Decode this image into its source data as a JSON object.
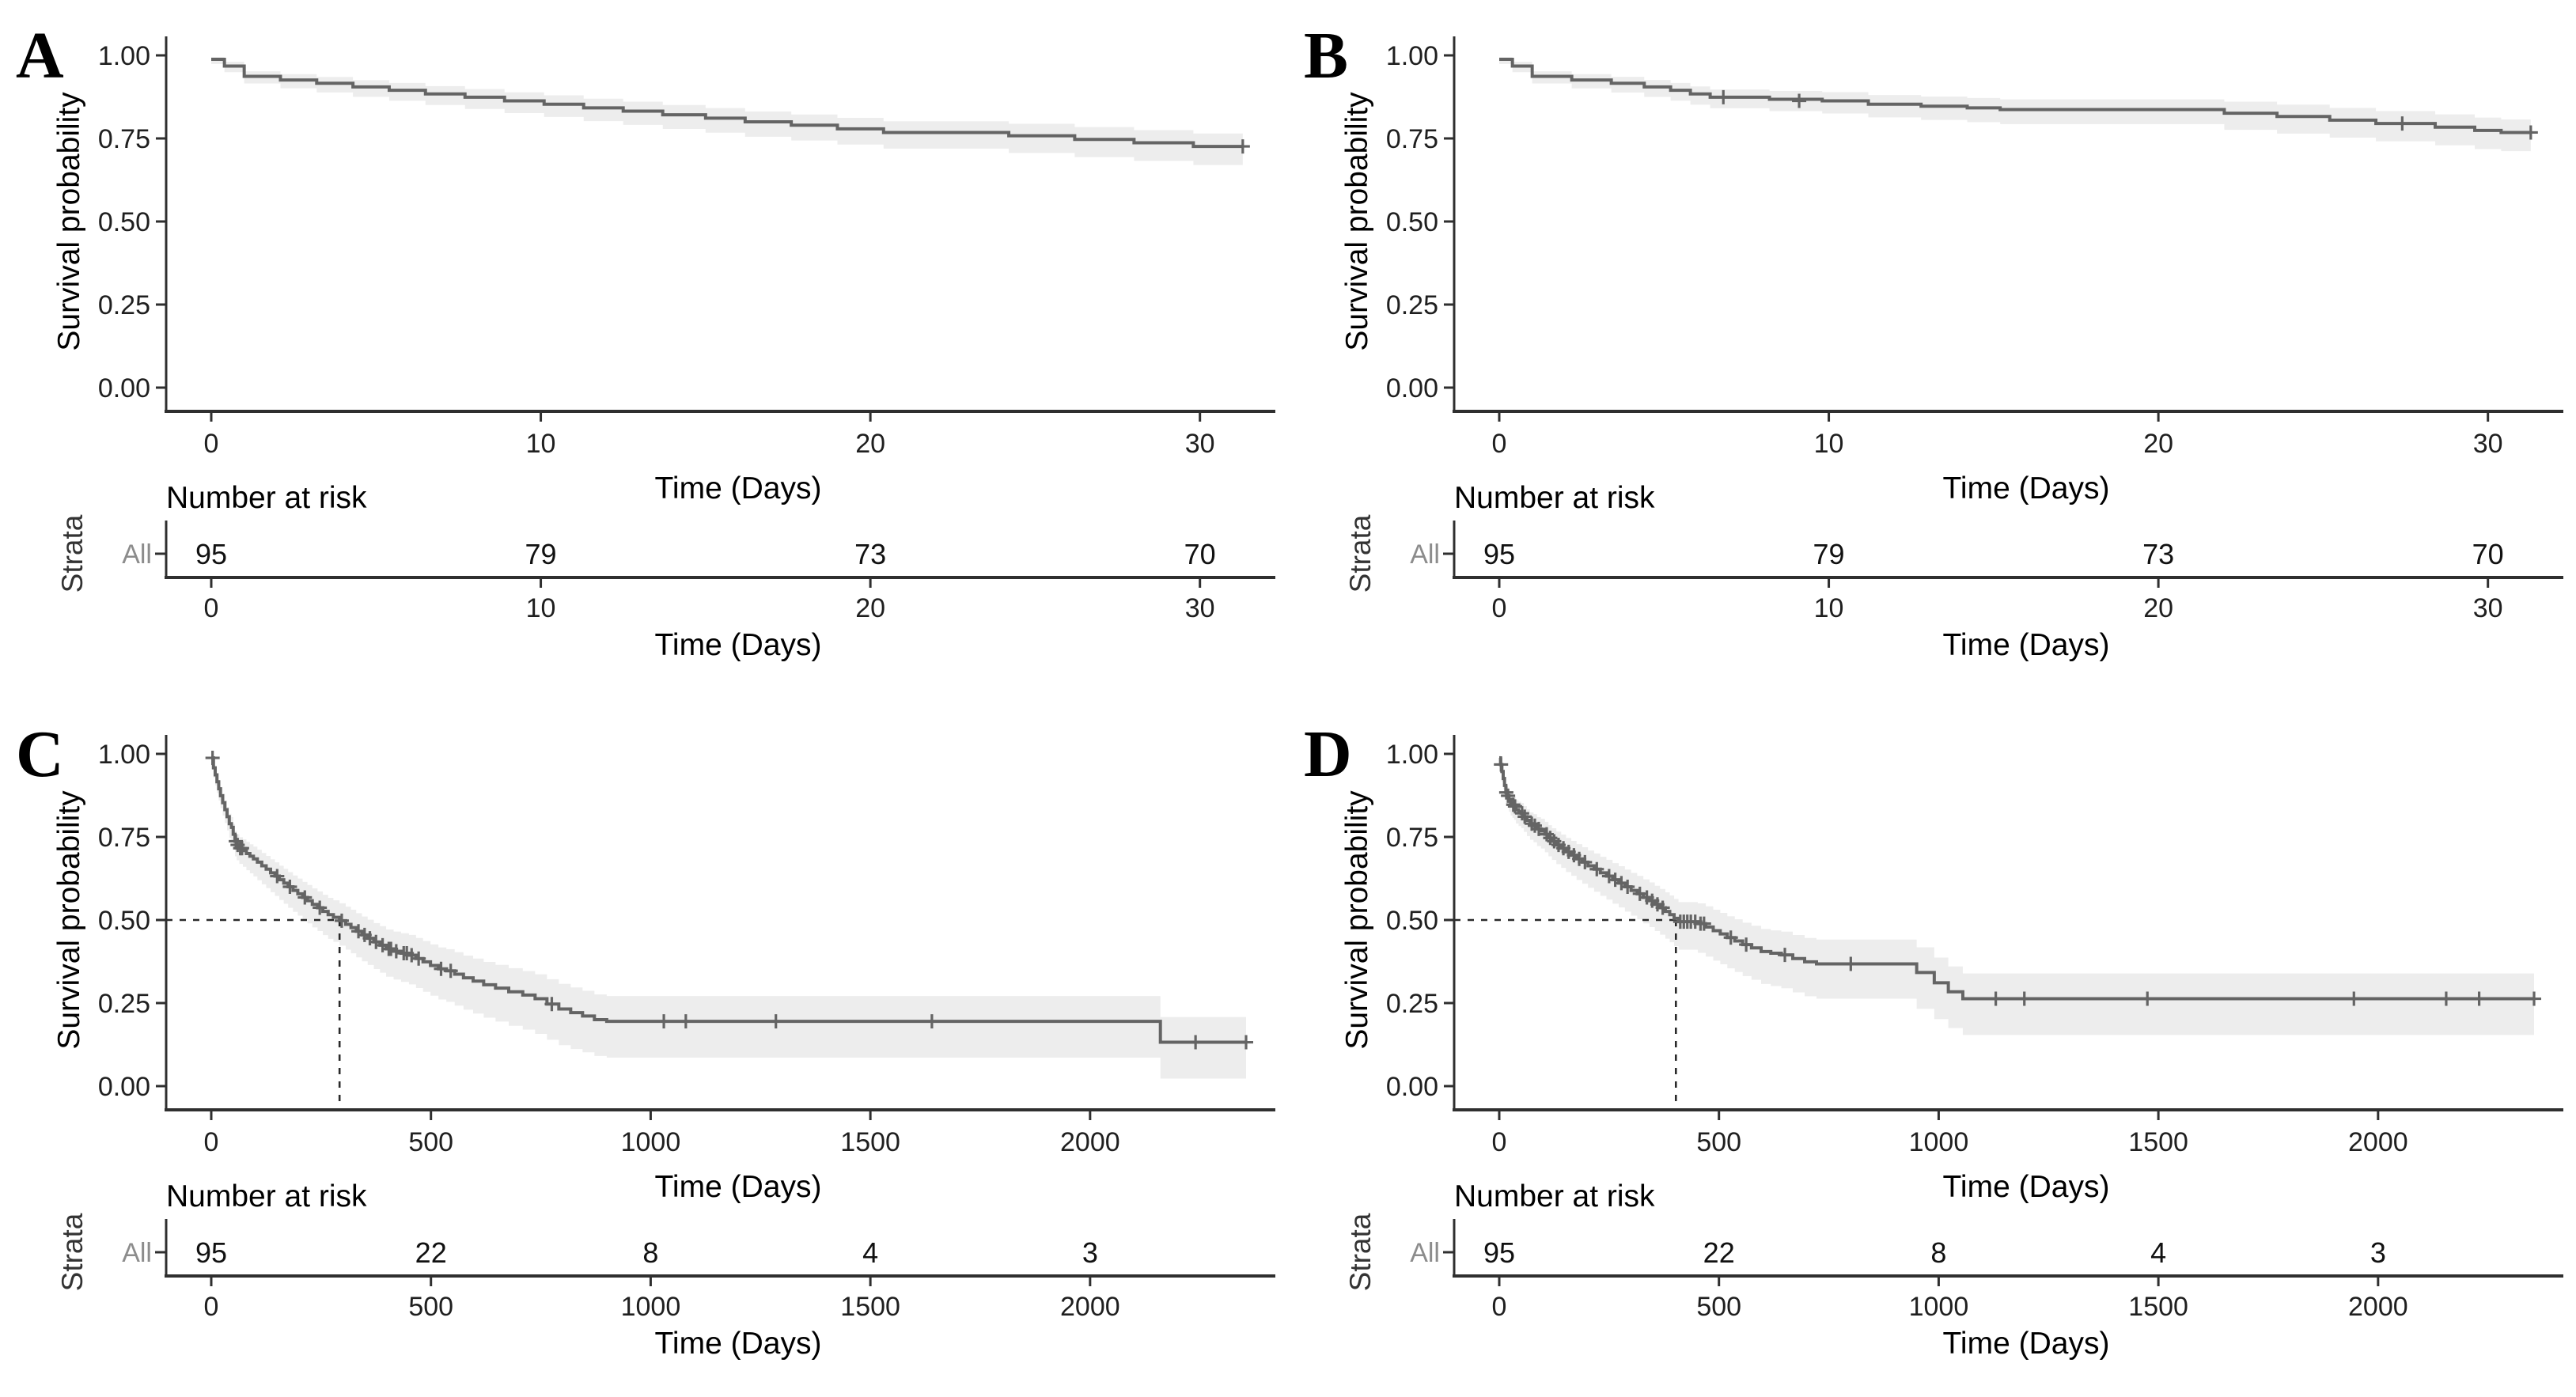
{
  "figure": {
    "background": "#ffffff",
    "ylabel": "Survival probability",
    "xlabel": "Time (Days)",
    "risk_title": "Number at risk",
    "strata_axis_label": "Strata",
    "strata_name": "All",
    "y_tick_labels": [
      "0.00",
      "0.25",
      "0.50",
      "0.75",
      "1.00"
    ],
    "y_tick_values": [
      0,
      0.25,
      0.5,
      0.75,
      1
    ],
    "colors": {
      "curve": "#646464",
      "band": "#ededed",
      "axis": "#2f2f2f",
      "tick_text": "#1f1f1f",
      "title_text": "#000000",
      "strata": "#333333",
      "strata_item": "#8c8c8c",
      "dashed": "#2a2a2a"
    }
  },
  "chart_data": [
    {
      "label": "A",
      "type": "line",
      "subtype": "kaplan-meier-step",
      "xlabel": "Time (Days)",
      "ylabel": "Survival probability",
      "xlim": [
        0,
        32
      ],
      "ylim": [
        0,
        1
      ],
      "x_ticks": [
        0,
        10,
        20,
        30
      ],
      "x_max": 32,
      "band": {
        "h0": 0.012,
        "h1": 0.05,
        "tref": 32
      },
      "median": null,
      "steps": [
        [
          0,
          0.988
        ],
        [
          0.4,
          0.968
        ],
        [
          1.0,
          0.937
        ],
        [
          2.1,
          0.926
        ],
        [
          3.2,
          0.916
        ],
        [
          4.3,
          0.905
        ],
        [
          5.4,
          0.895
        ],
        [
          6.5,
          0.884
        ],
        [
          7.7,
          0.874
        ],
        [
          8.9,
          0.863
        ],
        [
          10.1,
          0.853
        ],
        [
          11.3,
          0.842
        ],
        [
          12.5,
          0.832
        ],
        [
          13.7,
          0.821
        ],
        [
          15.0,
          0.811
        ],
        [
          16.2,
          0.8
        ],
        [
          17.6,
          0.79
        ],
        [
          19.0,
          0.779
        ],
        [
          20.4,
          0.768
        ],
        [
          24.2,
          0.758
        ],
        [
          26.2,
          0.747
        ],
        [
          28.0,
          0.737
        ],
        [
          29.8,
          0.726
        ],
        [
          31.3,
          0.726
        ]
      ],
      "censors": [
        [
          31.3,
          0.726
        ]
      ],
      "risk": {
        "times": [
          0,
          10,
          20,
          30
        ],
        "values": [
          "95",
          "79",
          "73",
          "70"
        ]
      }
    },
    {
      "label": "B",
      "type": "line",
      "subtype": "kaplan-meier-step",
      "xlabel": "Time (Days)",
      "ylabel": "Survival probability",
      "xlim": [
        0,
        32
      ],
      "ylim": [
        0,
        1
      ],
      "x_ticks": [
        0,
        10,
        20,
        30
      ],
      "x_max": 32,
      "band": {
        "h0": 0.012,
        "h1": 0.05,
        "tref": 32
      },
      "median": null,
      "steps": [
        [
          0,
          0.988
        ],
        [
          0.4,
          0.968
        ],
        [
          1.0,
          0.937
        ],
        [
          2.2,
          0.926
        ],
        [
          3.4,
          0.916
        ],
        [
          4.4,
          0.905
        ],
        [
          5.2,
          0.895
        ],
        [
          5.8,
          0.884
        ],
        [
          6.4,
          0.874
        ],
        [
          8.2,
          0.868
        ],
        [
          9.8,
          0.863
        ],
        [
          11.2,
          0.853
        ],
        [
          12.8,
          0.847
        ],
        [
          14.2,
          0.842
        ],
        [
          15.2,
          0.837
        ],
        [
          22.0,
          0.826
        ],
        [
          23.6,
          0.816
        ],
        [
          25.2,
          0.805
        ],
        [
          26.6,
          0.795
        ],
        [
          28.4,
          0.784
        ],
        [
          29.6,
          0.774
        ],
        [
          30.4,
          0.768
        ],
        [
          31.3,
          0.768
        ]
      ],
      "censors": [
        [
          6.8,
          0.874
        ],
        [
          9.1,
          0.863
        ],
        [
          27.4,
          0.795
        ],
        [
          31.3,
          0.768
        ]
      ],
      "risk": {
        "times": [
          0,
          10,
          20,
          30
        ],
        "values": [
          "95",
          "79",
          "73",
          "70"
        ]
      }
    },
    {
      "label": "C",
      "type": "line",
      "subtype": "kaplan-meier-step",
      "xlabel": "Time (Days)",
      "ylabel": "Survival probability",
      "xlim": [
        0,
        2400
      ],
      "ylim": [
        0,
        1
      ],
      "x_ticks": [
        0,
        500,
        1000,
        1500,
        2000
      ],
      "x_max": 2400,
      "band": {
        "h0": 0.02,
        "h1": 0.095,
        "tref": 800
      },
      "median": {
        "time": 292,
        "prob": 0.5
      },
      "steps": [
        [
          0,
          0.988
        ],
        [
          5,
          0.958
        ],
        [
          9,
          0.937
        ],
        [
          13,
          0.916
        ],
        [
          17,
          0.895
        ],
        [
          21,
          0.874
        ],
        [
          26,
          0.853
        ],
        [
          31,
          0.832
        ],
        [
          36,
          0.811
        ],
        [
          41,
          0.79
        ],
        [
          46,
          0.779
        ],
        [
          50,
          0.758
        ],
        [
          54,
          0.737
        ],
        [
          58,
          0.726
        ],
        [
          64,
          0.716
        ],
        [
          72,
          0.709
        ],
        [
          80,
          0.7
        ],
        [
          88,
          0.692
        ],
        [
          96,
          0.684
        ],
        [
          105,
          0.674
        ],
        [
          115,
          0.663
        ],
        [
          125,
          0.653
        ],
        [
          135,
          0.642
        ],
        [
          145,
          0.632
        ],
        [
          155,
          0.621
        ],
        [
          165,
          0.611
        ],
        [
          175,
          0.6
        ],
        [
          186,
          0.589
        ],
        [
          197,
          0.579
        ],
        [
          208,
          0.568
        ],
        [
          219,
          0.558
        ],
        [
          230,
          0.547
        ],
        [
          242,
          0.537
        ],
        [
          254,
          0.526
        ],
        [
          266,
          0.516
        ],
        [
          278,
          0.508
        ],
        [
          292,
          0.498
        ],
        [
          306,
          0.487
        ],
        [
          318,
          0.477
        ],
        [
          330,
          0.466
        ],
        [
          343,
          0.455
        ],
        [
          356,
          0.445
        ],
        [
          370,
          0.434
        ],
        [
          384,
          0.424
        ],
        [
          398,
          0.413
        ],
        [
          415,
          0.406
        ],
        [
          432,
          0.4
        ],
        [
          450,
          0.394
        ],
        [
          466,
          0.384
        ],
        [
          482,
          0.374
        ],
        [
          499,
          0.363
        ],
        [
          517,
          0.353
        ],
        [
          535,
          0.347
        ],
        [
          554,
          0.337
        ],
        [
          574,
          0.326
        ],
        [
          596,
          0.316
        ],
        [
          620,
          0.305
        ],
        [
          647,
          0.295
        ],
        [
          677,
          0.284
        ],
        [
          709,
          0.274
        ],
        [
          737,
          0.263
        ],
        [
          764,
          0.247
        ],
        [
          791,
          0.232
        ],
        [
          818,
          0.221
        ],
        [
          845,
          0.211
        ],
        [
          872,
          0.2
        ],
        [
          900,
          0.195
        ],
        [
          2160,
          0.132
        ],
        [
          2355,
          0.132
        ]
      ],
      "censors": [
        [
          3,
          0.988
        ],
        [
          56,
          0.737
        ],
        [
          60,
          0.726
        ],
        [
          66,
          0.716
        ],
        [
          70,
          0.716
        ],
        [
          150,
          0.632
        ],
        [
          179,
          0.6
        ],
        [
          213,
          0.568
        ],
        [
          247,
          0.537
        ],
        [
          297,
          0.498
        ],
        [
          335,
          0.466
        ],
        [
          349,
          0.455
        ],
        [
          361,
          0.445
        ],
        [
          375,
          0.434
        ],
        [
          390,
          0.424
        ],
        [
          404,
          0.413
        ],
        [
          409,
          0.413
        ],
        [
          421,
          0.406
        ],
        [
          438,
          0.4
        ],
        [
          445,
          0.4
        ],
        [
          456,
          0.394
        ],
        [
          472,
          0.384
        ],
        [
          523,
          0.353
        ],
        [
          545,
          0.347
        ],
        [
          775,
          0.247
        ],
        [
          1030,
          0.195
        ],
        [
          1080,
          0.195
        ],
        [
          1285,
          0.195
        ],
        [
          1640,
          0.195
        ],
        [
          2240,
          0.132
        ],
        [
          2355,
          0.132
        ]
      ],
      "risk": {
        "times": [
          0,
          500,
          1000,
          1500,
          2000
        ],
        "values": [
          "95",
          "22",
          "8",
          "4",
          "3"
        ]
      }
    },
    {
      "label": "D",
      "type": "line",
      "subtype": "kaplan-meier-step",
      "xlabel": "Time (Days)",
      "ylabel": "Survival probability",
      "xlim": [
        0,
        2400
      ],
      "ylim": [
        0,
        1
      ],
      "x_ticks": [
        0,
        500,
        1000,
        1500,
        2000
      ],
      "x_max": 2400,
      "band": {
        "h0": 0.02,
        "h1": 0.095,
        "tref": 800
      },
      "median": {
        "time": 402,
        "prob": 0.5
      },
      "steps": [
        [
          0,
          0.988
        ],
        [
          3,
          0.968
        ],
        [
          6,
          0.947
        ],
        [
          9,
          0.926
        ],
        [
          12,
          0.905
        ],
        [
          15,
          0.884
        ],
        [
          18,
          0.874
        ],
        [
          22,
          0.863
        ],
        [
          26,
          0.853
        ],
        [
          30,
          0.847
        ],
        [
          34,
          0.842
        ],
        [
          38,
          0.832
        ],
        [
          44,
          0.826
        ],
        [
          50,
          0.821
        ],
        [
          56,
          0.811
        ],
        [
          63,
          0.8
        ],
        [
          70,
          0.79
        ],
        [
          78,
          0.784
        ],
        [
          86,
          0.774
        ],
        [
          95,
          0.768
        ],
        [
          104,
          0.758
        ],
        [
          112,
          0.747
        ],
        [
          120,
          0.737
        ],
        [
          130,
          0.726
        ],
        [
          141,
          0.716
        ],
        [
          152,
          0.705
        ],
        [
          164,
          0.695
        ],
        [
          176,
          0.684
        ],
        [
          189,
          0.674
        ],
        [
          202,
          0.663
        ],
        [
          216,
          0.653
        ],
        [
          230,
          0.642
        ],
        [
          244,
          0.632
        ],
        [
          258,
          0.621
        ],
        [
          272,
          0.611
        ],
        [
          286,
          0.6
        ],
        [
          300,
          0.589
        ],
        [
          314,
          0.579
        ],
        [
          328,
          0.568
        ],
        [
          342,
          0.558
        ],
        [
          354,
          0.547
        ],
        [
          366,
          0.537
        ],
        [
          378,
          0.526
        ],
        [
          388,
          0.516
        ],
        [
          398,
          0.505
        ],
        [
          408,
          0.495
        ],
        [
          452,
          0.489
        ],
        [
          470,
          0.479
        ],
        [
          487,
          0.468
        ],
        [
          503,
          0.458
        ],
        [
          519,
          0.447
        ],
        [
          536,
          0.437
        ],
        [
          554,
          0.426
        ],
        [
          574,
          0.416
        ],
        [
          596,
          0.405
        ],
        [
          618,
          0.4
        ],
        [
          642,
          0.395
        ],
        [
          668,
          0.384
        ],
        [
          695,
          0.374
        ],
        [
          722,
          0.368
        ],
        [
          950,
          0.342
        ],
        [
          990,
          0.311
        ],
        [
          1022,
          0.284
        ],
        [
          1055,
          0.263
        ],
        [
          2355,
          0.263
        ]
      ],
      "censors": [
        [
          4,
          0.968
        ],
        [
          16,
          0.884
        ],
        [
          20,
          0.874
        ],
        [
          32,
          0.847
        ],
        [
          36,
          0.842
        ],
        [
          52,
          0.821
        ],
        [
          58,
          0.811
        ],
        [
          74,
          0.79
        ],
        [
          81,
          0.784
        ],
        [
          90,
          0.774
        ],
        [
          108,
          0.758
        ],
        [
          116,
          0.747
        ],
        [
          125,
          0.737
        ],
        [
          135,
          0.726
        ],
        [
          146,
          0.716
        ],
        [
          158,
          0.705
        ],
        [
          170,
          0.695
        ],
        [
          182,
          0.684
        ],
        [
          195,
          0.674
        ],
        [
          222,
          0.653
        ],
        [
          250,
          0.632
        ],
        [
          264,
          0.621
        ],
        [
          278,
          0.611
        ],
        [
          292,
          0.6
        ],
        [
          320,
          0.579
        ],
        [
          336,
          0.568
        ],
        [
          348,
          0.558
        ],
        [
          360,
          0.547
        ],
        [
          372,
          0.537
        ],
        [
          412,
          0.495
        ],
        [
          420,
          0.495
        ],
        [
          428,
          0.495
        ],
        [
          436,
          0.495
        ],
        [
          446,
          0.495
        ],
        [
          458,
          0.489
        ],
        [
          466,
          0.489
        ],
        [
          527,
          0.447
        ],
        [
          562,
          0.426
        ],
        [
          650,
          0.395
        ],
        [
          800,
          0.368
        ],
        [
          1130,
          0.263
        ],
        [
          1195,
          0.263
        ],
        [
          1475,
          0.263
        ],
        [
          1945,
          0.263
        ],
        [
          2155,
          0.263
        ],
        [
          2230,
          0.263
        ],
        [
          2355,
          0.263
        ]
      ],
      "risk": {
        "times": [
          0,
          500,
          1000,
          1500,
          2000
        ],
        "values": [
          "95",
          "22",
          "8",
          "4",
          "3"
        ]
      }
    }
  ]
}
